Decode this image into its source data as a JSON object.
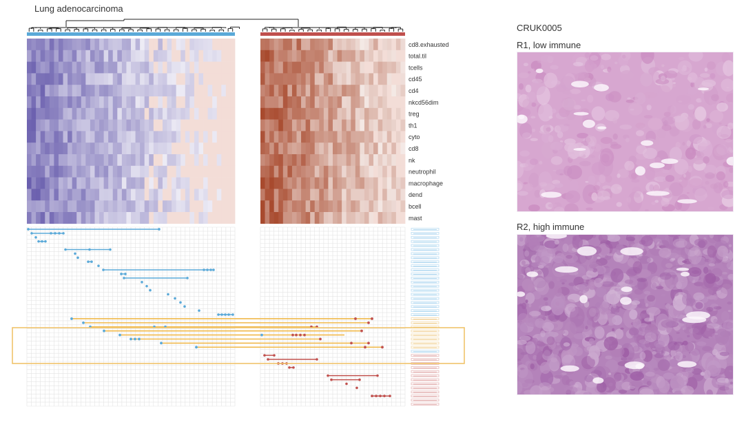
{
  "figure": {
    "title": "Lung adenocarcinoma",
    "immune_features": [
      "cd8.exhausted",
      "total.til",
      "tcells",
      "cd45",
      "cd4",
      "nkcd56dim",
      "treg",
      "th1",
      "cyto",
      "cd8",
      "nk",
      "neutrophil",
      "macrophage",
      "dend",
      "bcell",
      "mast"
    ],
    "cluster_colors": {
      "low": "#5aa9d8",
      "high": "#c0504d",
      "highlight": "#f0b84a"
    },
    "heatmap_colors": {
      "low_cluster": "#6a5fae",
      "high_cluster": "#a84a2e"
    },
    "highlight_box_color": "#f0c36a"
  },
  "patient_panel": {
    "patient_id": "CRUK0005",
    "regions": [
      {
        "label": "R1, low immune",
        "tissue_color": "#c98ac0"
      },
      {
        "label": "R2, high immune",
        "tissue_color": "#9b5aa3"
      }
    ]
  }
}
